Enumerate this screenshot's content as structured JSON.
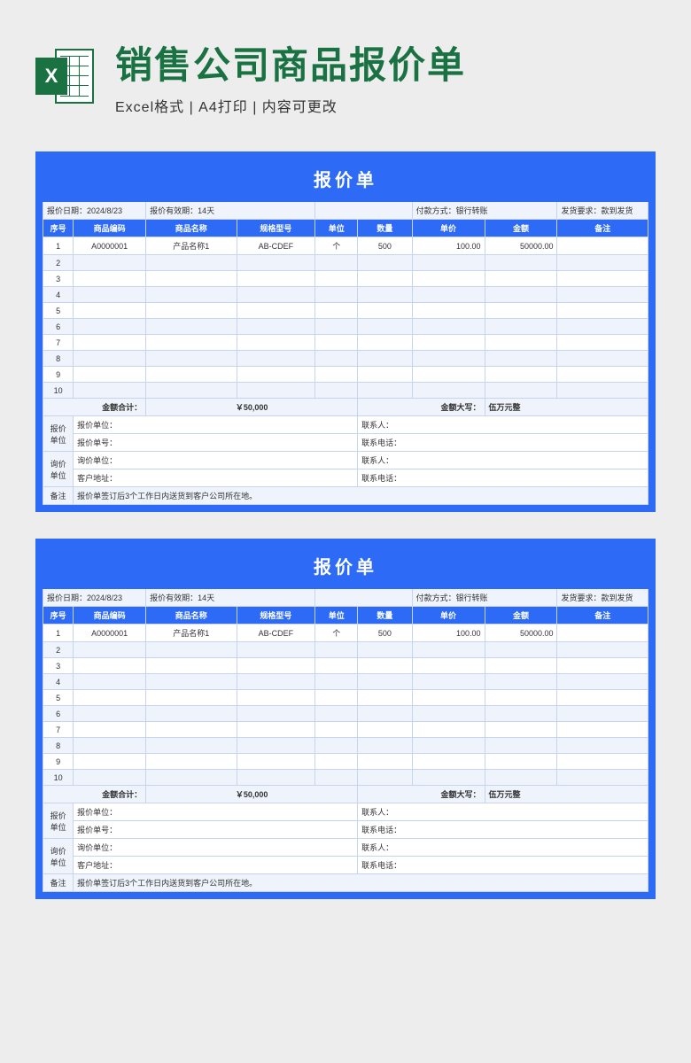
{
  "header": {
    "title": "销售公司商品报价单",
    "subtitle": "Excel格式 | A4打印 | 内容可更改",
    "icon_letter": "X"
  },
  "sheet": {
    "title": "报价单",
    "meta": {
      "date_label": "报价日期：",
      "date_value": "2024/8/23",
      "valid_label": "报价有效期：",
      "valid_value": "14天",
      "pay_label": "付款方式：",
      "pay_value": "银行转账",
      "ship_label": "发货要求：",
      "ship_value": "款到发货"
    },
    "columns": [
      "序号",
      "商品编码",
      "商品名称",
      "规格型号",
      "单位",
      "数量",
      "单价",
      "金额",
      "备注"
    ],
    "col_widths": [
      "5%",
      "12%",
      "15%",
      "13%",
      "7%",
      "9%",
      "12%",
      "12%",
      "15%"
    ],
    "rows": [
      {
        "n": "1",
        "code": "A0000001",
        "name": "产品名称1",
        "spec": "AB-CDEF",
        "unit": "个",
        "qty": "500",
        "price": "100.00",
        "amt": "50000.00",
        "note": ""
      },
      {
        "n": "2"
      },
      {
        "n": "3"
      },
      {
        "n": "4"
      },
      {
        "n": "5"
      },
      {
        "n": "6"
      },
      {
        "n": "7"
      },
      {
        "n": "8"
      },
      {
        "n": "9"
      },
      {
        "n": "10"
      }
    ],
    "summary": {
      "total_label": "金额合计：",
      "total_value": "￥50,000",
      "caps_label": "金额大写：",
      "caps_value": "伍万元整"
    },
    "info": {
      "quote_side": "报价\n单位",
      "quote_unit_label": "报价单位：",
      "quote_no_label": "报价单号：",
      "inquiry_side": "询价\n单位",
      "inquiry_unit_label": "询价单位：",
      "address_label": "客户地址：",
      "contact_label": "联系人：",
      "phone_label": "联系电话：",
      "note_label": "备注",
      "note_text": "报价单签订后3个工作日内送货到客户公司所在地。"
    },
    "colors": {
      "primary": "#2d6af6",
      "light": "#eef3fc",
      "border": "#c8d4ee",
      "page_bg": "#ededed",
      "title_color": "#1a7243"
    }
  }
}
